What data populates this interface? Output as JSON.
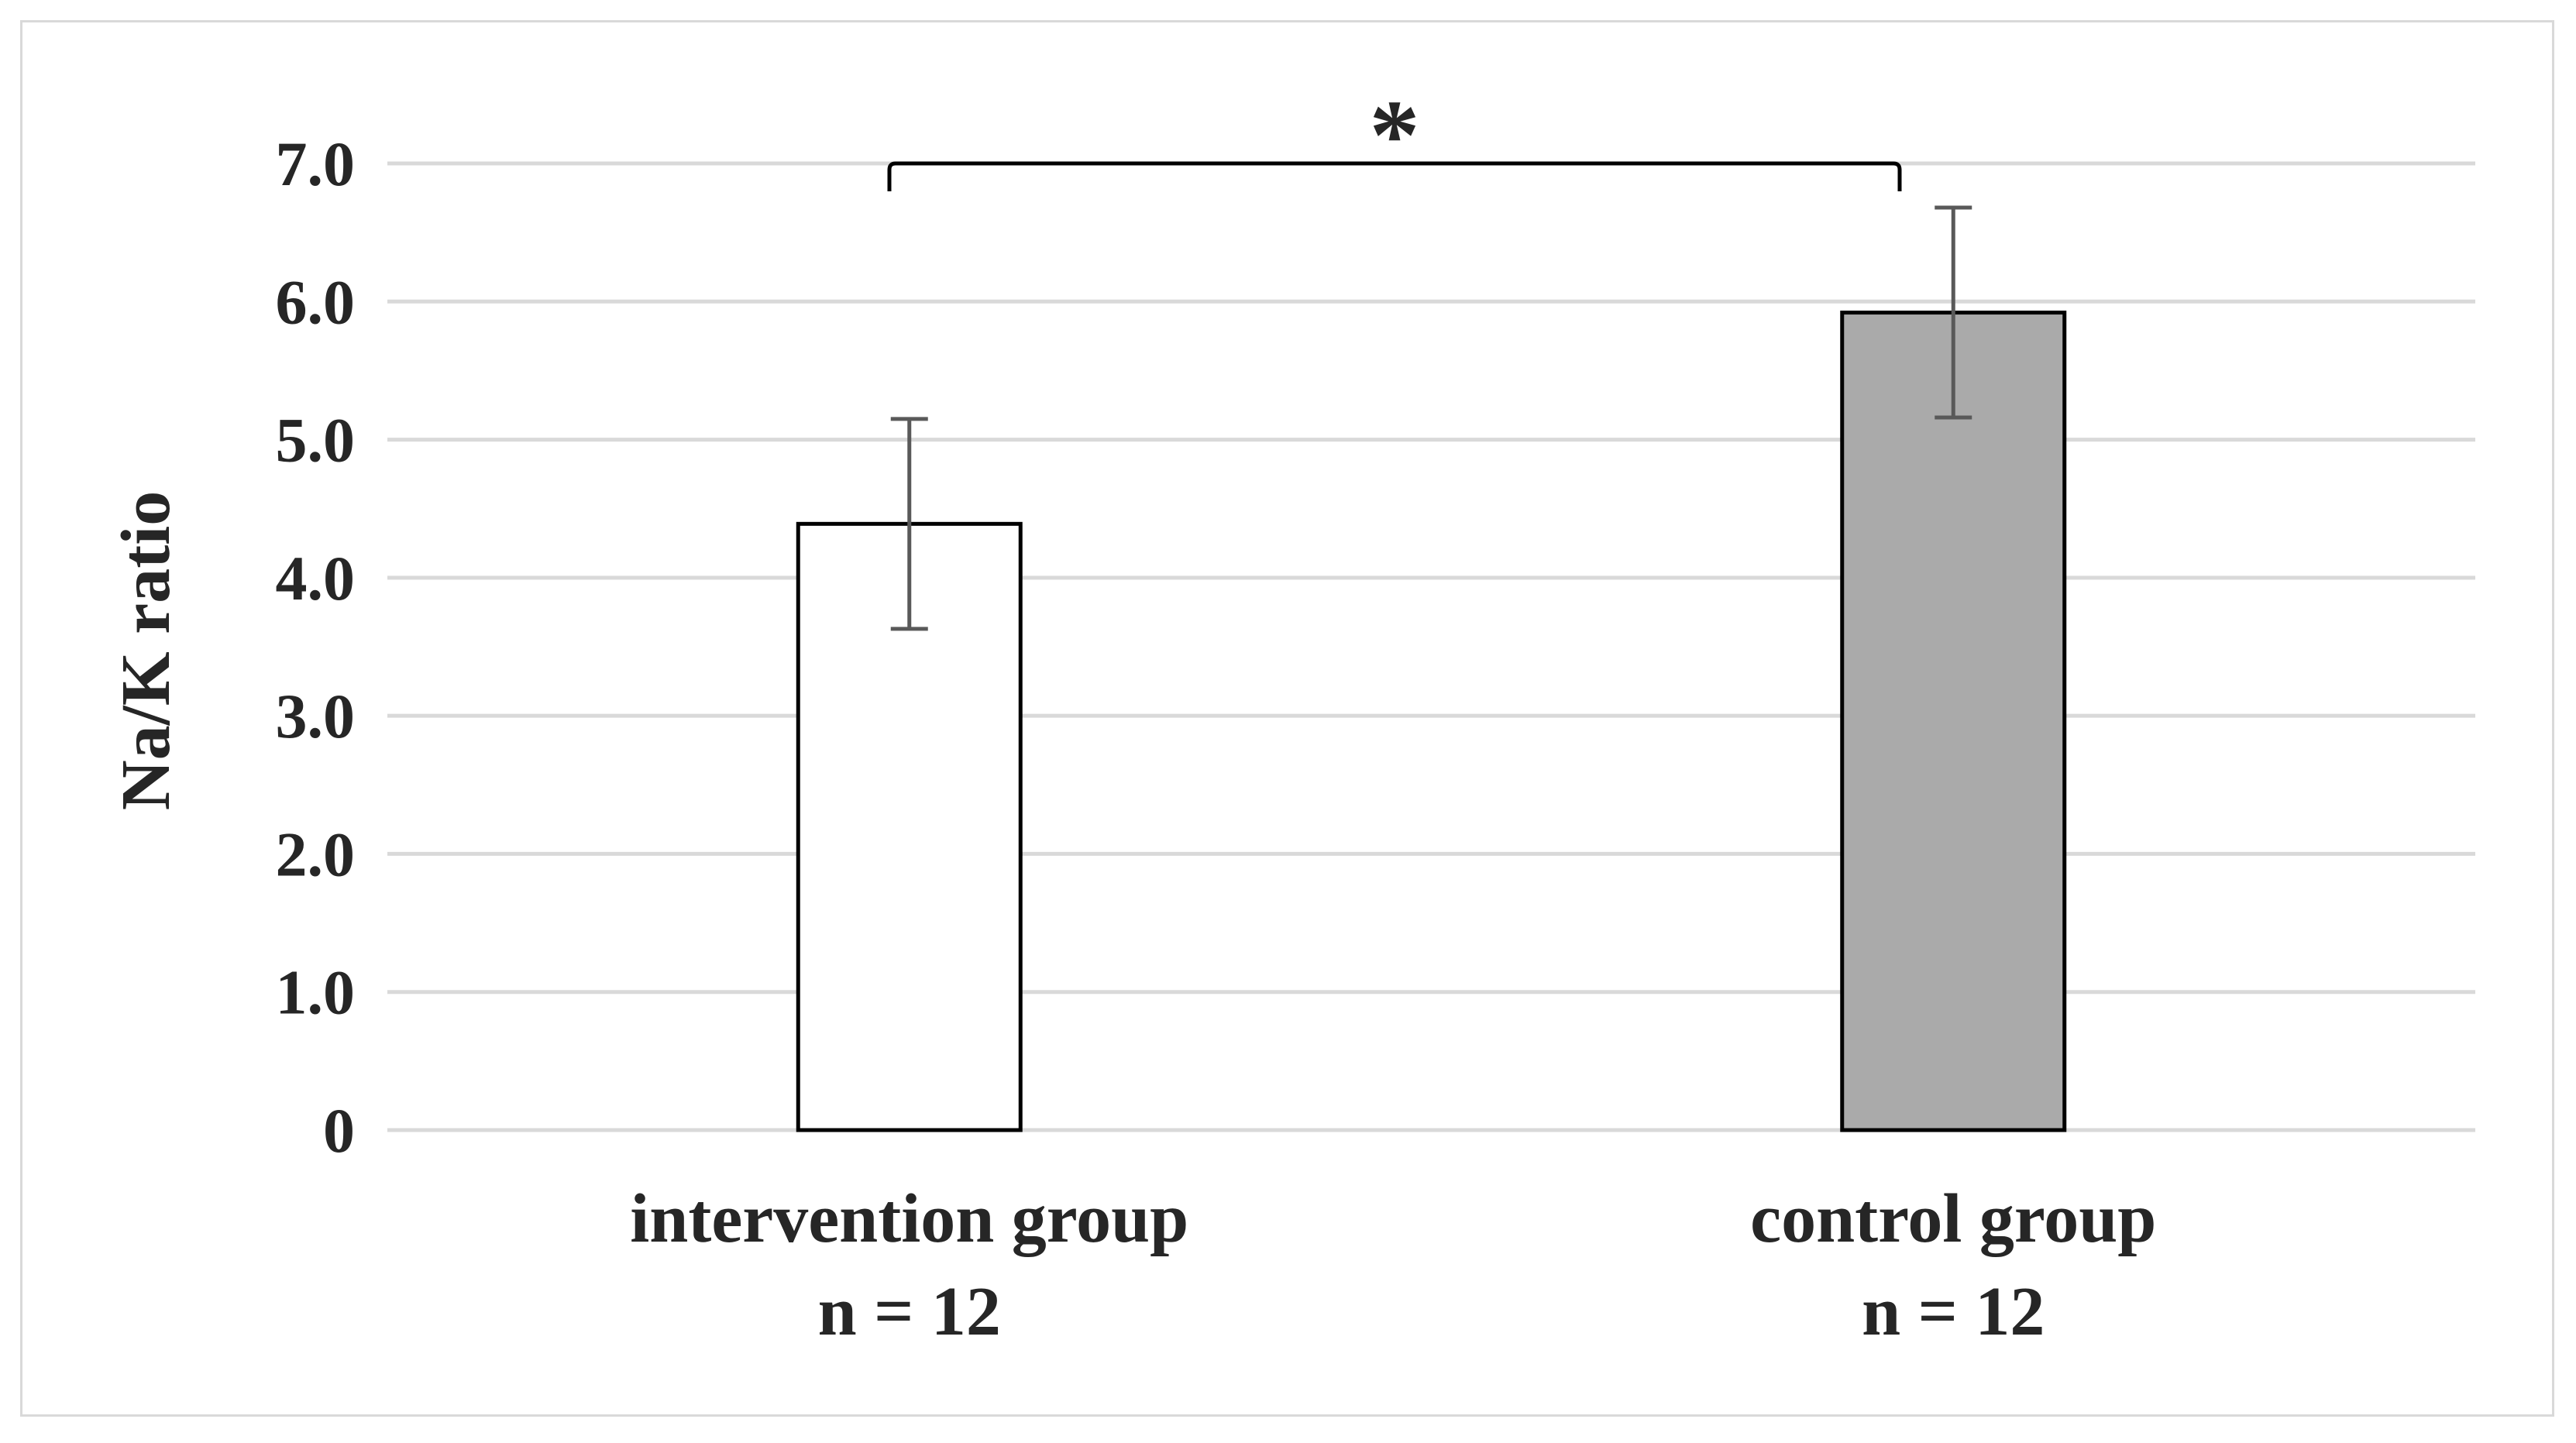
{
  "chart_data": {
    "type": "bar",
    "title": "",
    "ylabel": "Na/K ratio",
    "xlabel": "",
    "ylim": [
      0,
      7
    ],
    "yticks": [
      0,
      1,
      2,
      3,
      4,
      5,
      6,
      7
    ],
    "ytick_labels": [
      "0",
      "1.0",
      "2.0",
      "3.0",
      "4.0",
      "5.0",
      "6.0",
      "7.0"
    ],
    "grid": true,
    "categories": [
      {
        "label": "intervention group",
        "n_label": "n = 12"
      },
      {
        "label": "control group",
        "n_label": "n = 12"
      }
    ],
    "values": [
      4.39,
      5.92
    ],
    "error": [
      0.76,
      0.76
    ],
    "bar_fills": [
      "#ffffff",
      "#aaaaaa"
    ],
    "significance": {
      "between": [
        0,
        1
      ],
      "label": "*"
    }
  },
  "colors": {
    "grid": "#d9d9d9",
    "bar_edge": "#000000",
    "errorbar": "#595959",
    "text": "#262626"
  }
}
